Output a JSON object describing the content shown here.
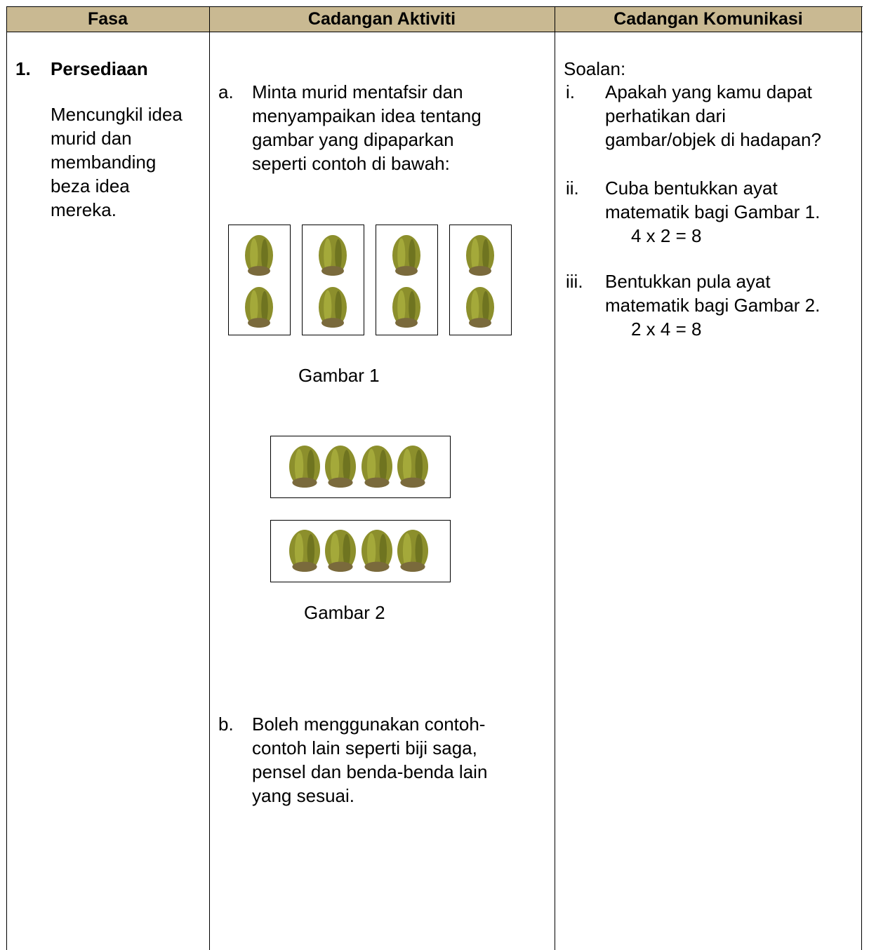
{
  "table": {
    "headers": [
      "Fasa",
      "Cadangan Aktiviti",
      "Cadangan Komunikasi"
    ],
    "phase": {
      "number": "1.",
      "title": "Persediaan",
      "description": [
        "Mencungkil idea",
        "murid dan",
        "membanding",
        "beza idea",
        "mereka."
      ]
    },
    "activities": [
      {
        "marker": "a.",
        "lines": [
          "Minta murid mentafsir dan",
          "menyampaikan idea tentang",
          "gambar yang dipaparkan",
          "seperti contoh di bawah:"
        ]
      },
      {
        "marker": "b.",
        "lines": [
          "Boleh menggunakan contoh-",
          "contoh lain seperti biji saga,",
          "pensel dan benda-benda lain",
          "yang sesuai."
        ]
      }
    ],
    "figures": [
      {
        "caption": "Gambar 1"
      },
      {
        "caption": "Gambar 2"
      }
    ],
    "communication": {
      "heading": "Soalan:",
      "questions": [
        {
          "marker": "i.",
          "lines": [
            "Apakah yang kamu dapat",
            "perhatikan dari",
            "gambar/objek di hadapan?"
          ]
        },
        {
          "marker": "ii.",
          "lines": [
            "Cuba bentukkan ayat",
            "matematik bagi Gambar 1."
          ],
          "answer": "4 x 2 = 8"
        },
        {
          "marker": "iii.",
          "lines": [
            "Bentukkan pula ayat",
            "matematik bagi Gambar 2."
          ],
          "answer": "2 x 4 = 8"
        }
      ]
    }
  }
}
